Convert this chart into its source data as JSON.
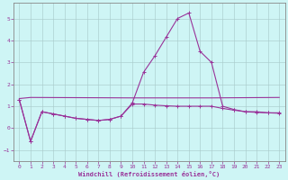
{
  "xlabel": "Windchill (Refroidissement éolien,°C)",
  "bg_color": "#cef5f5",
  "grid_color": "#aacccc",
  "line_color": "#993399",
  "xlim": [
    -0.5,
    23.5
  ],
  "ylim": [
    -1.5,
    5.7
  ],
  "yticks": [
    -1,
    0,
    1,
    2,
    3,
    4,
    5
  ],
  "xticks": [
    0,
    1,
    2,
    3,
    4,
    5,
    6,
    7,
    8,
    9,
    10,
    11,
    12,
    13,
    14,
    15,
    16,
    17,
    18,
    19,
    20,
    21,
    22,
    23
  ],
  "series1_x": [
    0,
    1,
    2,
    3,
    4,
    5,
    6,
    7,
    8,
    9,
    10,
    11,
    12,
    13,
    14,
    15,
    16,
    17,
    18,
    19,
    20,
    21,
    22,
    23
  ],
  "series1_y": [
    1.3,
    -0.6,
    0.75,
    0.65,
    0.55,
    0.45,
    0.4,
    0.35,
    0.4,
    0.55,
    1.15,
    2.55,
    3.3,
    4.15,
    5.0,
    5.25,
    3.5,
    3.0,
    1.0,
    0.85,
    0.75,
    0.75,
    0.7,
    0.7
  ],
  "series2_x": [
    0,
    1,
    10,
    16,
    17,
    23
  ],
  "series2_y": [
    1.35,
    1.4,
    1.38,
    1.38,
    1.38,
    1.4
  ],
  "series3_x": [
    0,
    1,
    2,
    3,
    4,
    5,
    6,
    7,
    8,
    9,
    10,
    11,
    12,
    13,
    14,
    15,
    16,
    17,
    18,
    19,
    20,
    21,
    22,
    23
  ],
  "series3_y": [
    1.3,
    -0.6,
    0.75,
    0.65,
    0.55,
    0.45,
    0.4,
    0.35,
    0.4,
    0.55,
    1.1,
    1.1,
    1.05,
    1.02,
    1.0,
    1.0,
    1.0,
    1.0,
    0.9,
    0.82,
    0.75,
    0.72,
    0.7,
    0.68
  ]
}
